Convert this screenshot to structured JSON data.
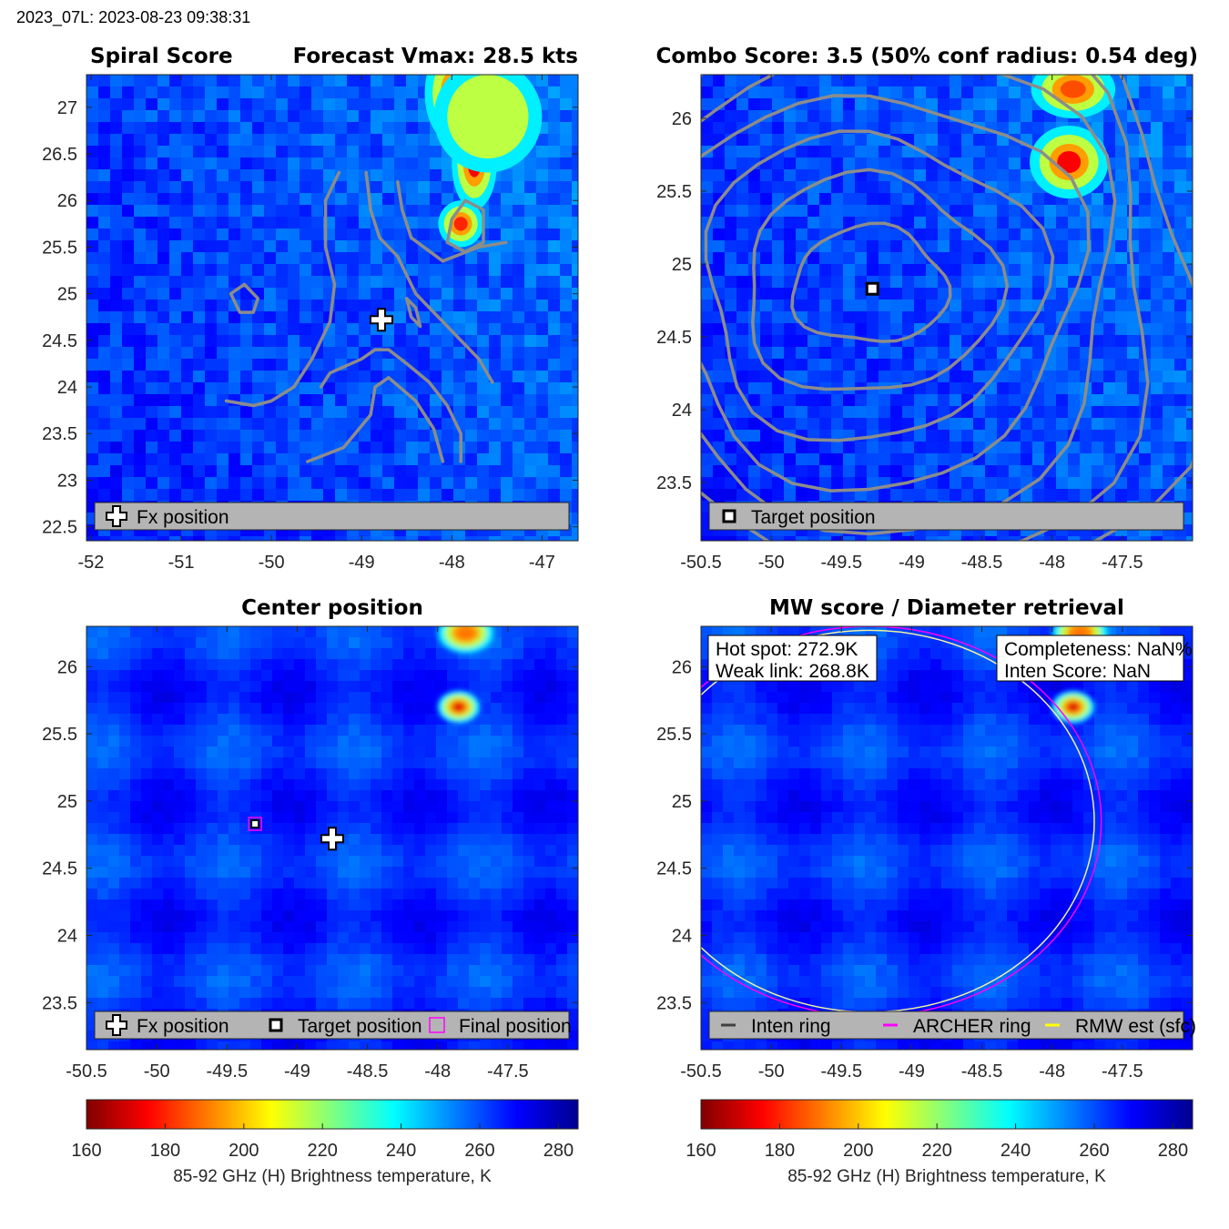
{
  "header": {
    "label": "2023_07L: 2023-08-23 09:38:31"
  },
  "colors": {
    "contour": "#8c8c8c",
    "legend_bg": "#b4b4b4",
    "archer_ring": "#ff00ff",
    "rmw_ring": "#ffff00",
    "inten_ring": "#404040"
  },
  "chart_data": [
    {
      "id": "spiral",
      "type": "heatmap",
      "title_left": "Spiral Score",
      "title_right": "Forecast Vmax: 28.5 kts",
      "xlim": [
        -52.05,
        -46.6
      ],
      "ylim": [
        22.35,
        27.35
      ],
      "xticks": [
        -52,
        -51,
        -50,
        -49,
        -48,
        -47
      ],
      "yticks": [
        22.5,
        23,
        23.5,
        24,
        24.5,
        25,
        25.5,
        26,
        26.5,
        27
      ],
      "hot_band": [
        [
          -47.95,
          27.15,
          0.35,
          0.55,
          163
        ],
        [
          -47.75,
          26.4,
          0.25,
          0.5,
          175
        ],
        [
          -47.9,
          25.75,
          0.25,
          0.25,
          180
        ],
        [
          -47.6,
          26.9,
          0.6,
          0.6,
          215
        ]
      ],
      "markers": [
        {
          "kind": "plus",
          "x": -48.78,
          "y": 24.72
        }
      ],
      "contours": [
        [
          [
            -50.45,
            25.0
          ],
          [
            -50.35,
            24.8
          ],
          [
            -50.2,
            24.8
          ],
          [
            -50.15,
            24.95
          ],
          [
            -50.3,
            25.1
          ],
          [
            -50.45,
            25.0
          ]
        ],
        [
          [
            -49.25,
            26.3
          ],
          [
            -49.4,
            26.0
          ],
          [
            -49.4,
            25.5
          ],
          [
            -49.3,
            25.1
          ],
          [
            -49.35,
            24.7
          ],
          [
            -49.55,
            24.3
          ],
          [
            -49.75,
            24.0
          ],
          [
            -50.0,
            23.85
          ],
          [
            -50.2,
            23.8
          ],
          [
            -50.5,
            23.85
          ]
        ],
        [
          [
            -48.95,
            26.3
          ],
          [
            -48.9,
            25.9
          ],
          [
            -48.8,
            25.6
          ],
          [
            -48.6,
            25.4
          ],
          [
            -48.5,
            25.2
          ],
          [
            -48.4,
            25.0
          ],
          [
            -48.0,
            24.6
          ],
          [
            -47.7,
            24.3
          ],
          [
            -47.55,
            24.05
          ]
        ],
        [
          [
            -48.6,
            26.2
          ],
          [
            -48.55,
            25.9
          ],
          [
            -48.45,
            25.6
          ],
          [
            -48.1,
            25.35
          ],
          [
            -47.7,
            25.5
          ],
          [
            -47.4,
            25.55
          ]
        ],
        [
          [
            -47.85,
            26.0
          ],
          [
            -48.0,
            25.8
          ],
          [
            -48.05,
            25.55
          ],
          [
            -47.85,
            25.45
          ],
          [
            -47.65,
            25.55
          ],
          [
            -47.65,
            25.9
          ],
          [
            -47.85,
            26.0
          ]
        ],
        [
          [
            -49.45,
            24.0
          ],
          [
            -49.35,
            24.15
          ],
          [
            -49.0,
            24.3
          ],
          [
            -48.85,
            24.4
          ],
          [
            -48.7,
            24.4
          ],
          [
            -48.5,
            24.25
          ],
          [
            -48.25,
            24.05
          ],
          [
            -48.05,
            23.8
          ],
          [
            -47.9,
            23.5
          ],
          [
            -47.9,
            23.2
          ]
        ],
        [
          [
            -49.6,
            23.2
          ],
          [
            -49.2,
            23.35
          ],
          [
            -48.9,
            23.7
          ],
          [
            -48.85,
            24.0
          ],
          [
            -48.7,
            24.1
          ],
          [
            -48.4,
            23.85
          ],
          [
            -48.2,
            23.55
          ],
          [
            -48.1,
            23.2
          ]
        ],
        [
          [
            -48.5,
            24.95
          ],
          [
            -48.45,
            24.75
          ],
          [
            -48.35,
            24.65
          ],
          [
            -48.4,
            24.85
          ],
          [
            -48.5,
            24.95
          ]
        ]
      ],
      "legend": [
        {
          "icon": "plus",
          "label": "Fx position"
        }
      ]
    },
    {
      "id": "combo",
      "type": "heatmap",
      "title_left": "",
      "title_right": "Combo Score: 3.5  (50% conf radius: 0.54 deg)",
      "xlim": [
        -50.5,
        -47.0
      ],
      "ylim": [
        23.1,
        26.3
      ],
      "xticks": [
        -50.5,
        -50,
        -49.5,
        -49,
        -48.5,
        -48,
        -47.5
      ],
      "yticks": [
        23.5,
        24,
        24.5,
        25,
        25.5,
        26
      ],
      "hot_band": [
        [
          -47.85,
          26.2,
          0.3,
          0.2,
          185
        ],
        [
          -47.88,
          25.7,
          0.28,
          0.25,
          175
        ]
      ],
      "center": [
        -49.3,
        24.85
      ],
      "rings": [
        [
          0.55,
          0.4
        ],
        [
          0.9,
          0.75
        ],
        [
          1.2,
          1.05
        ],
        [
          1.5,
          1.35
        ],
        [
          1.8,
          1.65
        ],
        [
          2.1,
          1.95
        ],
        [
          2.4,
          2.25
        ]
      ],
      "markers": [
        {
          "kind": "square",
          "x": -49.28,
          "y": 24.83
        }
      ],
      "legend": [
        {
          "icon": "square",
          "label": "Target position"
        }
      ]
    },
    {
      "id": "center",
      "type": "heatmap",
      "title_left": "",
      "title_right": "Center position",
      "xlim": [
        -50.5,
        -47.0
      ],
      "ylim": [
        23.15,
        26.3
      ],
      "xticks": [
        -50.5,
        -50,
        -49.5,
        -49,
        -48.5,
        -48,
        -47.5
      ],
      "yticks": [
        23.5,
        24,
        24.5,
        25,
        25.5,
        26
      ],
      "hot_band": [
        [
          -47.8,
          26.25,
          0.2,
          0.15,
          190
        ],
        [
          -47.85,
          25.7,
          0.15,
          0.12,
          172
        ]
      ],
      "markers": [
        {
          "kind": "plus",
          "x": -48.75,
          "y": 24.72
        },
        {
          "kind": "square-final",
          "x": -49.3,
          "y": 24.83
        }
      ],
      "legend": [
        {
          "icon": "plus",
          "label": "Fx position"
        },
        {
          "icon": "square",
          "label": "Target position"
        },
        {
          "icon": "magenta-square",
          "label": "Final position"
        }
      ]
    },
    {
      "id": "mw",
      "type": "heatmap",
      "title_left": "",
      "title_right": "MW score / Diameter retrieval",
      "xlim": [
        -50.5,
        -47.0
      ],
      "ylim": [
        23.15,
        26.3
      ],
      "xticks": [
        -50.5,
        -50,
        -49.5,
        -49,
        -48.5,
        -48,
        -47.5
      ],
      "yticks": [
        23.5,
        24,
        24.5,
        25,
        25.5,
        26
      ],
      "hot_band": [
        [
          -47.8,
          26.25,
          0.2,
          0.15,
          190
        ],
        [
          -47.85,
          25.7,
          0.15,
          0.12,
          172
        ]
      ],
      "annotations": [
        {
          "line1": "Hot spot: 272.9K",
          "line2": "Weak link: 268.8K"
        },
        {
          "line1": "Completeness: NaN%",
          "line2": "Inten Score: NaN"
        }
      ],
      "archer_ring": {
        "cx": -49.3,
        "cy": 24.85,
        "rx": 1.65,
        "ry": 1.45
      },
      "rmw_ring": {
        "cx": -49.3,
        "cy": 24.85,
        "rx": 1.6,
        "ry": 1.42
      },
      "legend": [
        {
          "icon": "line-gray",
          "label": "Inten ring"
        },
        {
          "icon": "line-magenta",
          "label": "ARCHER ring"
        },
        {
          "icon": "line-yellow",
          "label": "RMW est (sfc)"
        }
      ]
    }
  ],
  "colorbars": [
    {
      "ticks": [
        160,
        180,
        200,
        220,
        240,
        260,
        280
      ],
      "range": [
        160,
        285
      ],
      "label": "85-92 GHz (H) Brightness temperature, K"
    },
    {
      "ticks": [
        160,
        180,
        200,
        220,
        240,
        260,
        280
      ],
      "range": [
        160,
        285
      ],
      "label": "85-92 GHz (H) Brightness temperature, K"
    }
  ]
}
